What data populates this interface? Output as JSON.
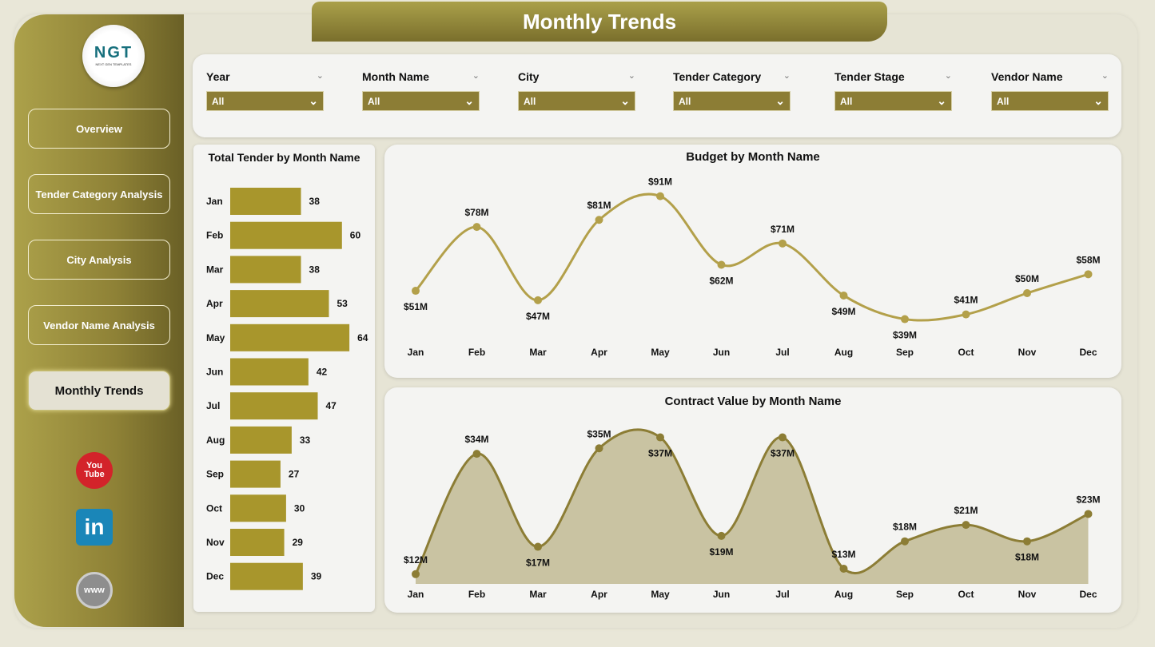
{
  "header": {
    "title": "Monthly Trends"
  },
  "logo": {
    "text": "NGT",
    "sub": "NEXT GEN TEMPLATES"
  },
  "nav": [
    {
      "label": "Overview"
    },
    {
      "label": "Tender Category Analysis"
    },
    {
      "label": "City Analysis"
    },
    {
      "label": "Vendor Name Analysis"
    },
    {
      "label": "Monthly Trends",
      "active": true
    }
  ],
  "social": [
    {
      "icon": "youtube-icon",
      "text": "You Tube"
    },
    {
      "icon": "linkedin-icon",
      "text": "in"
    },
    {
      "icon": "globe-icon",
      "text": "www"
    }
  ],
  "filters": [
    {
      "label": "Year",
      "value": "All"
    },
    {
      "label": "Month Name",
      "value": "All"
    },
    {
      "label": "City",
      "value": "All"
    },
    {
      "label": "Tender Category",
      "value": "All"
    },
    {
      "label": "Tender Stage",
      "value": "All"
    },
    {
      "label": "Vendor Name",
      "value": "All"
    }
  ],
  "colors": {
    "accent": "#a8962c",
    "line": "#b3a04a",
    "area": "#c9c3a2",
    "dropdown": "#8c7d35"
  },
  "chart_data": [
    {
      "type": "bar",
      "title": "Total Tender by Month Name",
      "categories": [
        "Jan",
        "Feb",
        "Mar",
        "Apr",
        "May",
        "Jun",
        "Jul",
        "Aug",
        "Sep",
        "Oct",
        "Nov",
        "Dec"
      ],
      "values": [
        38,
        60,
        38,
        53,
        64,
        42,
        47,
        33,
        27,
        30,
        29,
        39
      ]
    },
    {
      "type": "line",
      "title": "Budget by Month Name",
      "categories": [
        "Jan",
        "Feb",
        "Mar",
        "Apr",
        "May",
        "Jun",
        "Jul",
        "Aug",
        "Sep",
        "Oct",
        "Nov",
        "Dec"
      ],
      "values": [
        51,
        78,
        47,
        81,
        91,
        62,
        71,
        49,
        39,
        41,
        50,
        58
      ],
      "labels": [
        "$51M",
        "$78M",
        "$47M",
        "$81M",
        "$91M",
        "$62M",
        "$71M",
        "$49M",
        "$39M",
        "$41M",
        "$50M",
        "$58M"
      ],
      "unit": "$M"
    },
    {
      "type": "area",
      "title": "Contract Value by Month Name",
      "categories": [
        "Jan",
        "Feb",
        "Mar",
        "Apr",
        "May",
        "Jun",
        "Jul",
        "Aug",
        "Sep",
        "Oct",
        "Nov",
        "Dec"
      ],
      "values": [
        12,
        34,
        17,
        35,
        37,
        19,
        37,
        13,
        18,
        21,
        18,
        23
      ],
      "labels": [
        "$12M",
        "$34M",
        "$17M",
        "$35M",
        "$37M",
        "$19M",
        "$37M",
        "$13M",
        "$18M",
        "$21M",
        "$18M",
        "$23M"
      ],
      "unit": "$M"
    }
  ]
}
